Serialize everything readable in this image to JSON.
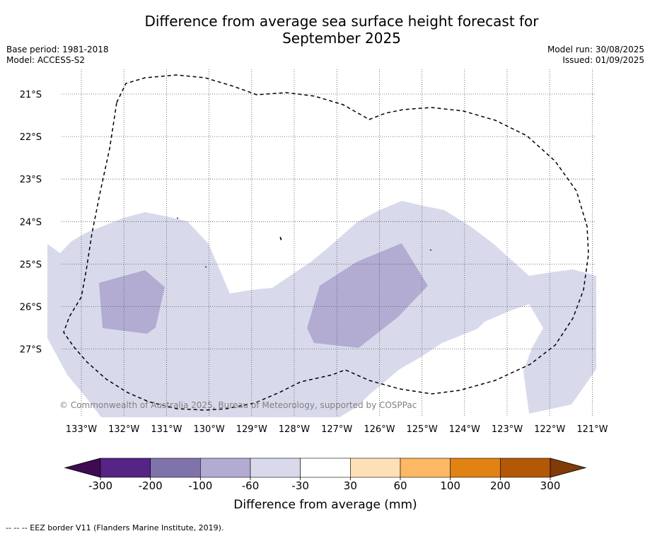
{
  "title": "Difference from average sea surface height forecast for September 2025",
  "title_lines": [
    "Difference from average sea surface height forecast for",
    "September 2025"
  ],
  "base_period": "Base period: 1981-2018",
  "model": "Model: ACCESS-S2",
  "model_run": "Model run: 30/08/2025",
  "issued": "Issued: 01/09/2025",
  "copyright": "© Commonwealth of Australia 2025, Bureau of Meteorology, supported by COSPPac",
  "map": {
    "longitudes": [
      "133°W",
      "132°W",
      "131°W",
      "130°W",
      "129°W",
      "128°W",
      "127°W",
      "126°W",
      "125°W",
      "124°W",
      "123°W",
      "122°W",
      "121°W"
    ],
    "latitudes": [
      "21°S",
      "22°S",
      "23°S",
      "24°S",
      "25°S",
      "26°S",
      "27°S"
    ],
    "gridlines": true,
    "layers": [
      "-60 to -30 mm",
      "-100 to -60 mm",
      "EEZ border"
    ]
  },
  "colorbar": {
    "title": "Difference from average (mm)",
    "ticks": [
      "-300",
      "-200",
      "-100",
      "-60",
      "-30",
      "30",
      "60",
      "100",
      "200",
      "300"
    ],
    "colors": [
      "#3f0a52",
      "#552485",
      "#8073ac",
      "#b2abd2",
      "#d8daeb",
      "#ffffff",
      "#fee0b6",
      "#fdb863",
      "#e08214",
      "#b35806",
      "#7f3b08"
    ]
  },
  "shading_colors": {
    "light": "#d8daeb",
    "medium": "#b2abd2"
  },
  "footnote": "--  --  -- EEZ border V11 (Flanders Marine Institute, 2019)."
}
